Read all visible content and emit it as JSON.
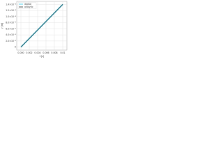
{
  "chart_data": {
    "type": "line",
    "x_label": "t [s]",
    "y_label": "y [m]",
    "x": [
      0,
      0.01
    ],
    "series": [
      {
        "name": "digital",
        "color": "#29c5e6",
        "values": [
          0,
          1.4e-08
        ]
      },
      {
        "name": "analytic",
        "color": "#222222",
        "values": [
          0,
          1.4e-08
        ]
      }
    ],
    "xlim": [
      -0.001,
      0.011
    ],
    "xticks": [
      {
        "value": 0,
        "label": "0.000"
      },
      {
        "value": 0.002,
        "label": "0.002"
      },
      {
        "value": 0.004,
        "label": "0.004"
      },
      {
        "value": 0.006,
        "label": "0.006"
      },
      {
        "value": 0.008,
        "label": "0.008"
      },
      0.01
    ],
    "ylim": [
      -1e-09,
      1.5e-08
    ],
    "yticks": [
      0,
      {
        "value": 2e-09,
        "label": "2.0×10⁻⁹"
      },
      {
        "value": 4e-09,
        "label": "4.0×10⁻⁹"
      },
      {
        "value": 6e-09,
        "label": "6.0×10⁻⁹"
      },
      {
        "value": 8e-09,
        "label": "8.0×10⁻⁹"
      },
      {
        "value": 1e-08,
        "label": "1.0×10⁻⁸"
      },
      {
        "value": 1.2e-08,
        "label": "1.2×10⁻⁸"
      },
      {
        "value": 1.4e-08,
        "label": "1.4×10⁻⁸"
      }
    ],
    "grid": true,
    "legend": "top-left"
  }
}
